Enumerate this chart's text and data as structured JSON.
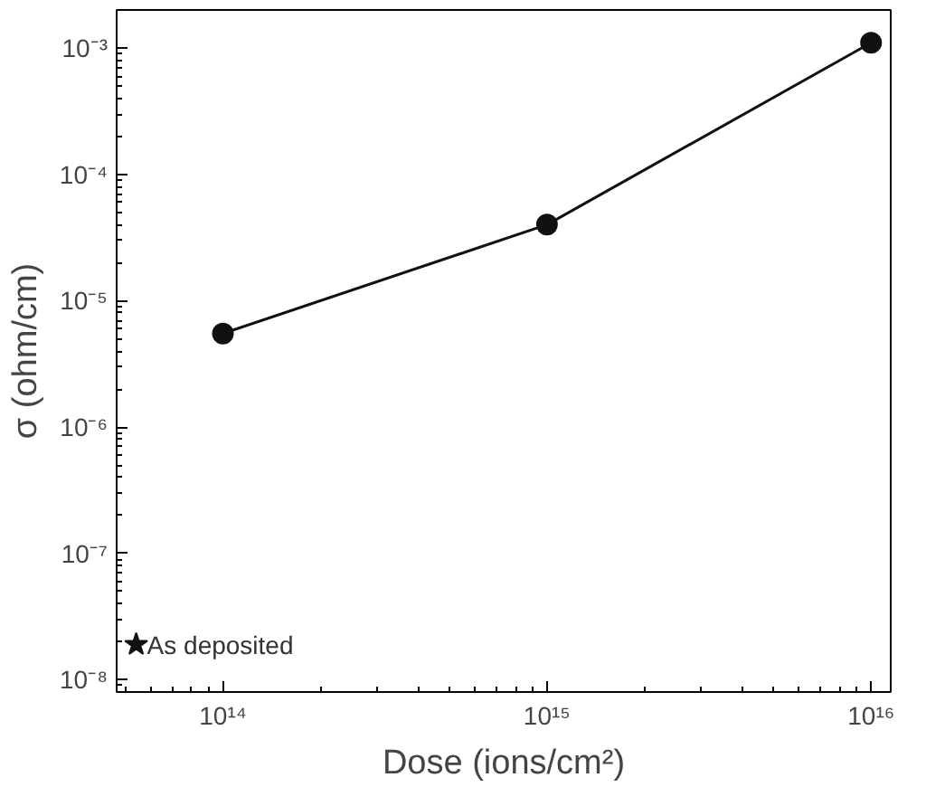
{
  "chart_data": {
    "type": "line",
    "xlabel": "Dose (ions/cm²)",
    "ylabel": "σ (ohm/cm)",
    "log": "xy",
    "grid": false,
    "marker": "circle",
    "line_style": "solid",
    "xlim": [
      47000000000000.0,
      1.15e+16
    ],
    "ylim": [
      8e-09,
      0.002
    ],
    "xticks": [
      {
        "value": 100000000000000.0,
        "label": "10¹⁴"
      },
      {
        "value": 1000000000000000.0,
        "label": "10¹⁵"
      },
      {
        "value": 1e+16,
        "label": "10¹⁶"
      }
    ],
    "yticks": [
      {
        "value": 1e-08,
        "label": "10⁻⁸"
      },
      {
        "value": 1e-07,
        "label": "10⁻⁷"
      },
      {
        "value": 1e-06,
        "label": "10⁻⁶"
      },
      {
        "value": 1e-05,
        "label": "10⁻⁵"
      },
      {
        "value": 0.0001,
        "label": "10⁻⁴"
      },
      {
        "value": 0.001,
        "label": "10⁻³"
      }
    ],
    "series": [
      {
        "color": "#111111",
        "x": [
          100000000000000.0,
          1000000000000000.0,
          1e+16
        ],
        "values": [
          5.5e-06,
          4e-05,
          0.0011
        ]
      },
      {
        "type": "scatter",
        "marker": "star",
        "color": "#111111",
        "x": [
          54000000000000.0
        ],
        "values": [
          1.9e-08
        ]
      }
    ],
    "annotations": [
      "As deposited"
    ]
  }
}
